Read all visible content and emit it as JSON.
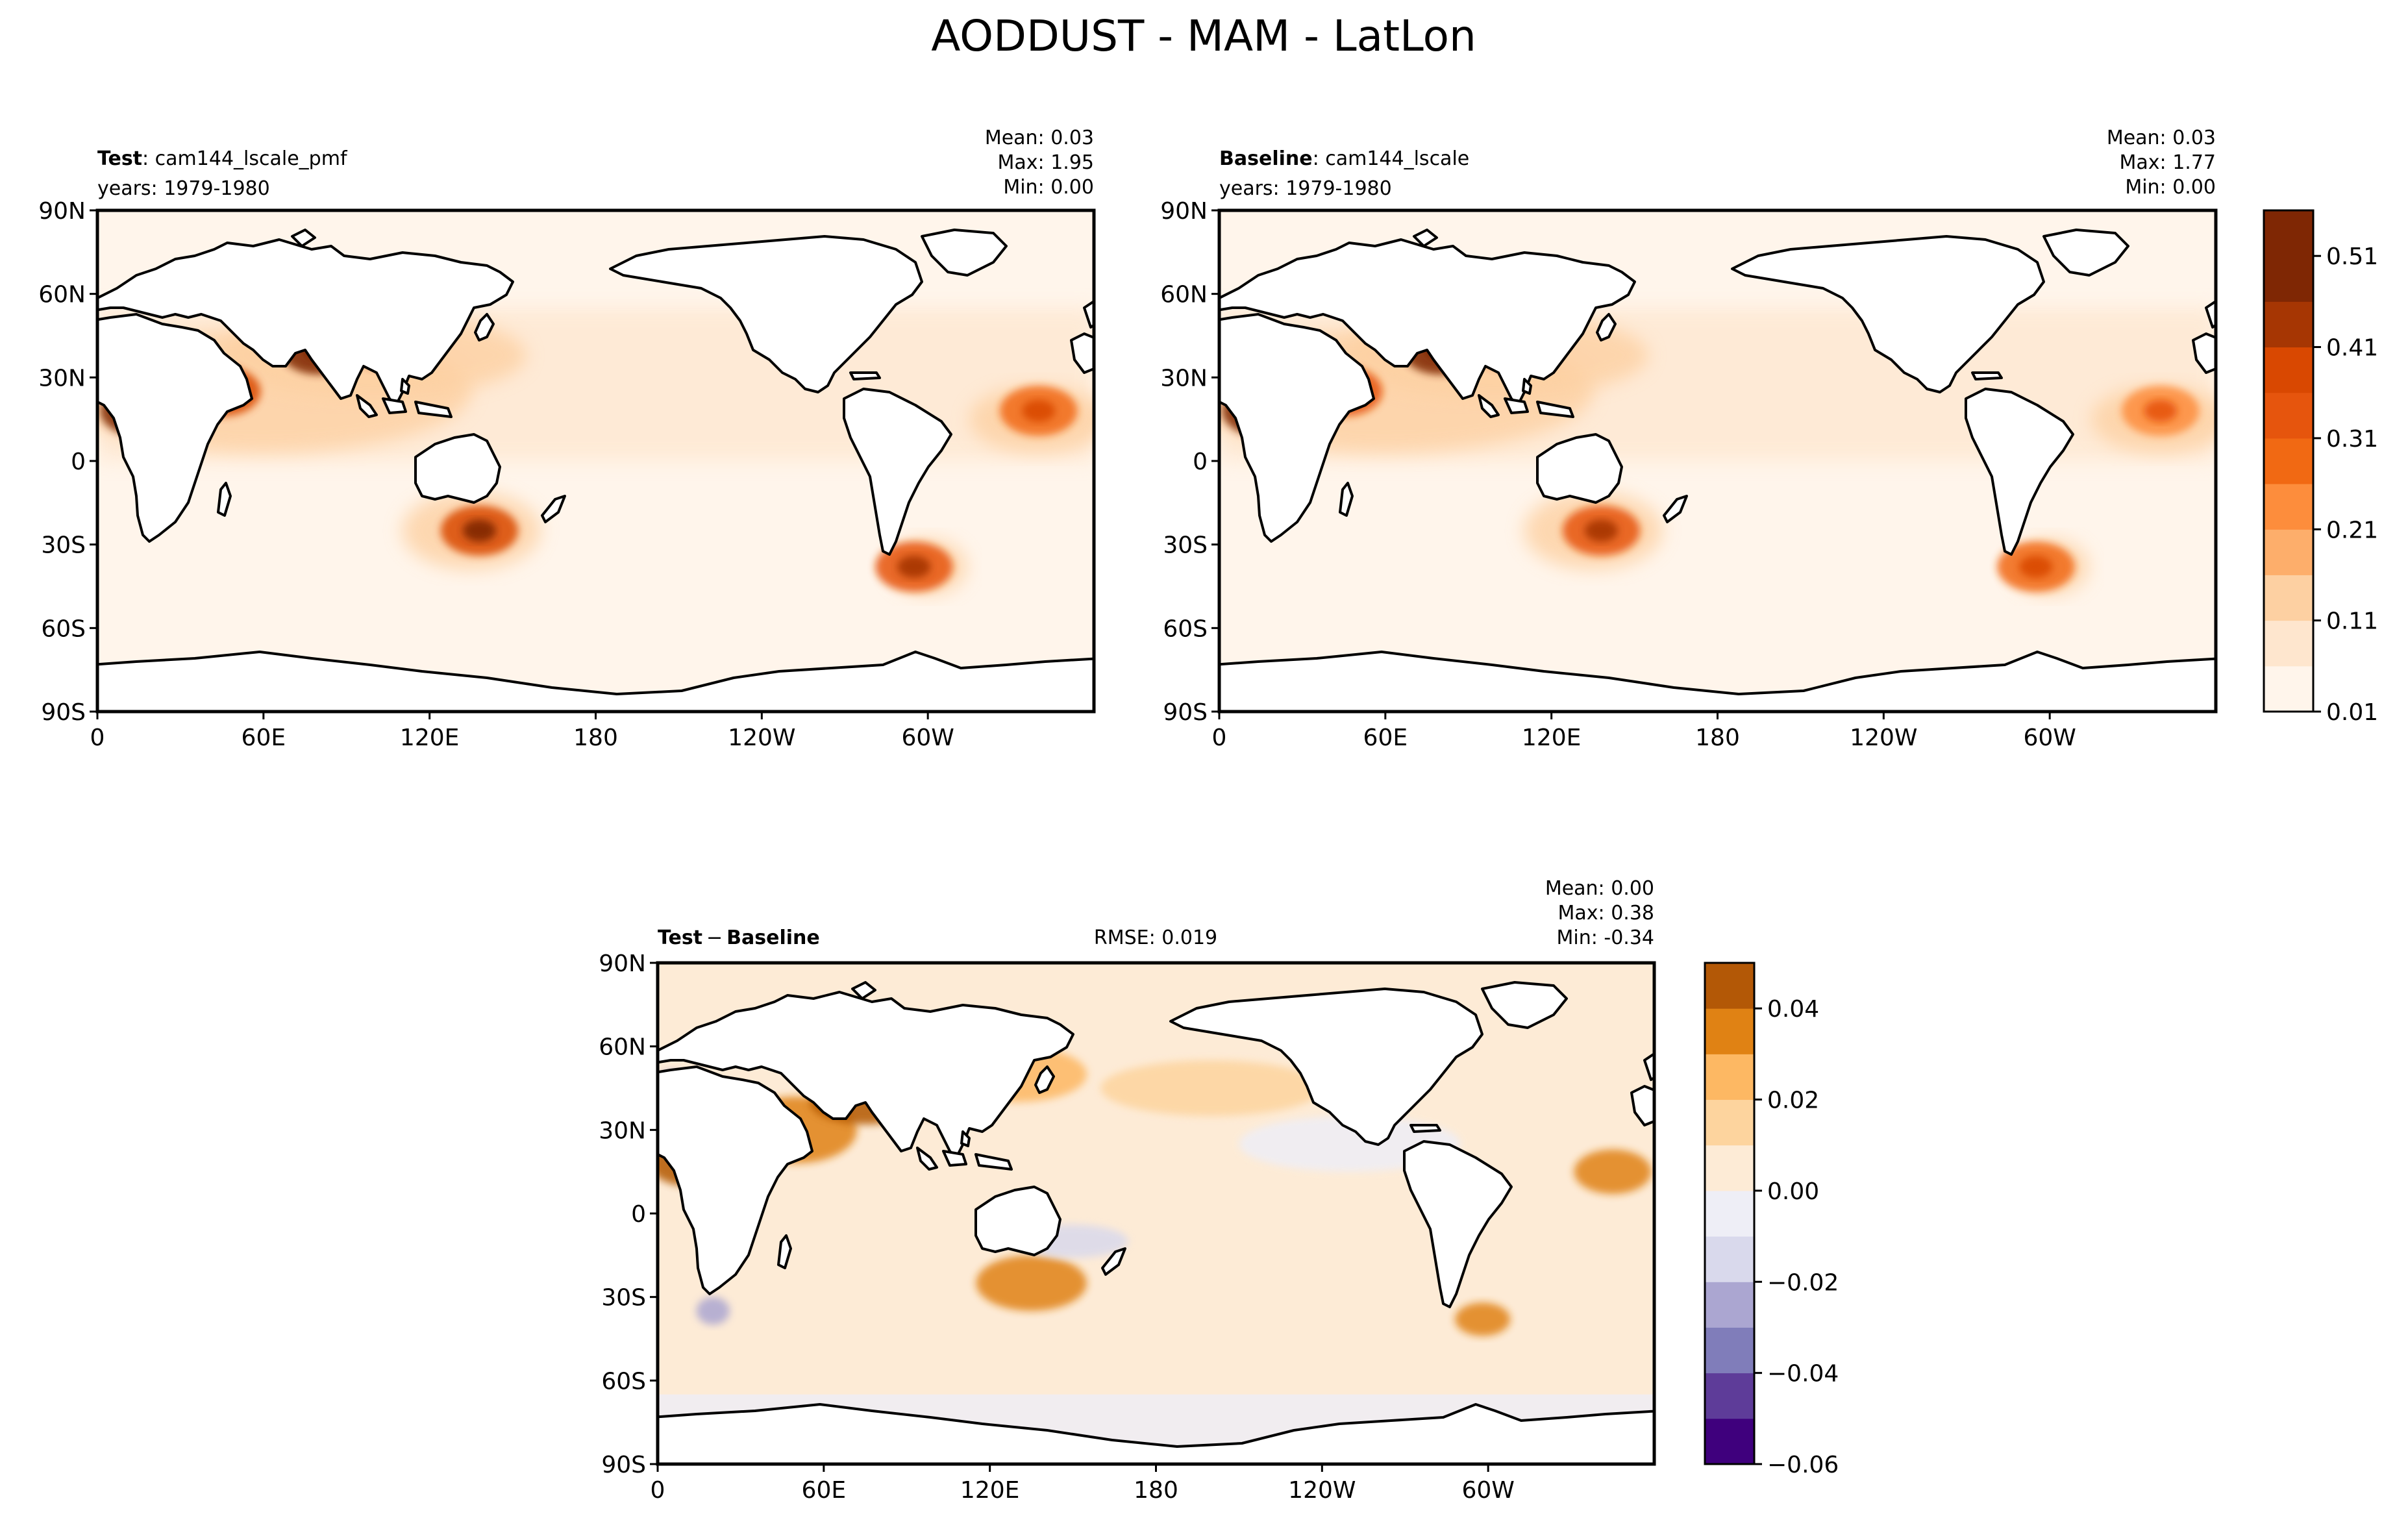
{
  "figure_title": "AODDUST - MAM - LatLon",
  "lat_ticks": [
    "90N",
    "60N",
    "30N",
    "0",
    "30S",
    "60S",
    "90S"
  ],
  "lon_ticks": [
    "0",
    "60E",
    "120E",
    "180",
    "120W",
    "60W"
  ],
  "colors": {
    "oranges": [
      "#fff5eb",
      "#fee6ce",
      "#fdd0a2",
      "#fdae6b",
      "#fd8d3c",
      "#f16913",
      "#e6550d",
      "#d94801",
      "#a63603",
      "#7f2704"
    ],
    "diff_neg": [
      "#3f007d",
      "#5e3c99",
      "#807dba",
      "#aba6d1",
      "#d9d9ec",
      "#eeeef6"
    ],
    "diff_pos": [
      "#fdebd6",
      "#fdd49e",
      "#fdb863",
      "#e08214",
      "#b35806",
      "#8c4a0c"
    ],
    "land_outline": "#000000"
  },
  "panels": [
    {
      "label_bold": "Test",
      "label_rest": ": cam144_lscale_pmf",
      "years": "years: 1979-1980",
      "mean": "Mean:  0.03",
      "max": "Max:  1.95",
      "min": "Min:  0.00"
    },
    {
      "label_bold": "Baseline",
      "label_rest": ": cam144_lscale",
      "years": "years: 1979-1980",
      "mean": "Mean:  0.03",
      "max": "Max:  1.77",
      "min": "Min:  0.00"
    },
    {
      "label_bold": "Test",
      "label_minus": "−",
      "label_bold2": "Baseline",
      "rmse": "RMSE: 0.019",
      "mean": "Mean:  0.00",
      "max": "Max:  0.38",
      "min": "Min: -0.34"
    }
  ],
  "colorbar_top": {
    "tick_labels": [
      "0.51",
      "0.41",
      "0.31",
      "0.21",
      "0.11",
      "0.01"
    ],
    "levels": [
      0.01,
      0.06,
      0.11,
      0.16,
      0.21,
      0.26,
      0.31,
      0.36,
      0.41,
      0.46,
      0.51,
      0.56
    ]
  },
  "colorbar_diff": {
    "tick_labels": [
      "0.04",
      "0.02",
      "0.00",
      "−0.02",
      "−0.04",
      "−0.06"
    ],
    "levels": [
      -0.06,
      -0.05,
      -0.04,
      -0.03,
      -0.02,
      -0.01,
      0.0,
      0.01,
      0.02,
      0.03,
      0.04,
      0.05
    ]
  },
  "chart_data": [
    {
      "type": "heatmap",
      "title": "Test : cam144_lscale_pmf",
      "variable": "AODDUST",
      "season": "MAM",
      "stats": {
        "mean": 0.03,
        "max": 1.95,
        "min": 0.0
      },
      "x_ticks": [
        "0",
        "60E",
        "120E",
        "180",
        "120W",
        "60W"
      ],
      "y_ticks": [
        "90N",
        "60N",
        "30N",
        "0",
        "30S",
        "60S",
        "90S"
      ],
      "xlim": [
        0,
        360
      ],
      "ylim": [
        -90,
        90
      ],
      "dust_hotspots": [
        {
          "lon": 15,
          "lat": 18,
          "value": 0.56
        },
        {
          "lon": 45,
          "lat": 25,
          "value": 0.4
        },
        {
          "lon": 80,
          "lat": 40,
          "value": 0.56
        },
        {
          "lon": 105,
          "lat": 42,
          "value": 0.45
        },
        {
          "lon": 138,
          "lat": -25,
          "value": 0.4
        },
        {
          "lon": 295,
          "lat": -38,
          "value": 0.35
        },
        {
          "lon": 340,
          "lat": 18,
          "value": 0.3
        }
      ]
    },
    {
      "type": "heatmap",
      "title": "Baseline : cam144_lscale",
      "variable": "AODDUST",
      "season": "MAM",
      "stats": {
        "mean": 0.03,
        "max": 1.77,
        "min": 0.0
      },
      "x_ticks": [
        "0",
        "60E",
        "120E",
        "180",
        "120W",
        "60W"
      ],
      "y_ticks": [
        "90N",
        "60N",
        "30N",
        "0",
        "30S",
        "60S",
        "90S"
      ],
      "xlim": [
        0,
        360
      ],
      "ylim": [
        -90,
        90
      ],
      "dust_hotspots": [
        {
          "lon": 15,
          "lat": 18,
          "value": 0.5
        },
        {
          "lon": 45,
          "lat": 25,
          "value": 0.35
        },
        {
          "lon": 80,
          "lat": 40,
          "value": 0.5
        },
        {
          "lon": 105,
          "lat": 42,
          "value": 0.38
        },
        {
          "lon": 138,
          "lat": -25,
          "value": 0.35
        },
        {
          "lon": 295,
          "lat": -38,
          "value": 0.3
        },
        {
          "lon": 340,
          "lat": 18,
          "value": 0.25
        }
      ]
    },
    {
      "type": "heatmap",
      "title": "Test − Baseline",
      "variable": "AODDUST",
      "season": "MAM",
      "stats": {
        "mean": 0.0,
        "max": 0.38,
        "min": -0.34,
        "rmse": 0.019
      },
      "x_ticks": [
        "0",
        "60E",
        "120E",
        "180",
        "120W",
        "60W"
      ],
      "y_ticks": [
        "90N",
        "60N",
        "30N",
        "0",
        "30S",
        "60S",
        "90S"
      ],
      "xlim": [
        0,
        360
      ],
      "ylim": [
        -90,
        90
      ]
    }
  ]
}
